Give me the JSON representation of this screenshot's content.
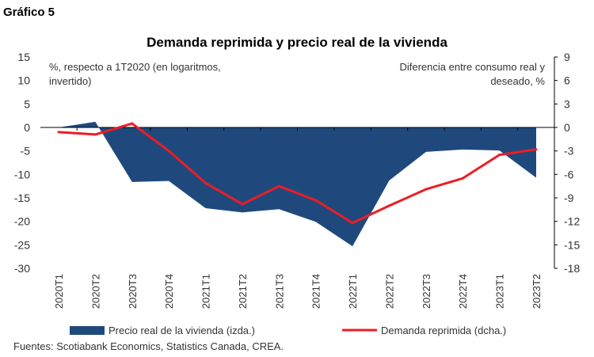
{
  "header": {
    "label": "Gráfico 5"
  },
  "chart_data": {
    "type": "area+line",
    "title": "Demanda reprimida y precio real de la vivienda",
    "left_axis_label": "%, respecto a 1T2020 (en logaritmos, invertido)",
    "left_axis_label_lines": [
      "%, respecto a 1T2020 (en logaritmos,",
      "invertido)"
    ],
    "right_axis_label_lines": [
      "Diferencia entre consumo real y",
      "deseado, %"
    ],
    "ylim_left": [
      -30,
      15
    ],
    "yticks_left": [
      15,
      10,
      5,
      0,
      -5,
      -10,
      -15,
      -20,
      -25,
      -30
    ],
    "ylim_right": [
      -18,
      9
    ],
    "yticks_right": [
      9,
      6,
      3,
      0,
      -3,
      -6,
      -9,
      -12,
      -15,
      -18
    ],
    "categories": [
      "2020T1",
      "2020T2",
      "2020T3",
      "2020T4",
      "2021T1",
      "2021T2",
      "2021T3",
      "2021T4",
      "2022T1",
      "2022T2",
      "2022T3",
      "2022T4",
      "2023T1",
      "2023T2"
    ],
    "series": [
      {
        "name": "Precio real de la vivienda (izda.)",
        "type": "area",
        "axis": "left",
        "color": "#1f497d",
        "values": [
          0,
          1.2,
          -11.6,
          -11.4,
          -17.2,
          -18.1,
          -17.4,
          -20.1,
          -25.3,
          -11.3,
          -5.2,
          -4.7,
          -4.9,
          -10.7
        ]
      },
      {
        "name": "Demanda reprimida (dcha.)",
        "type": "line",
        "axis": "right",
        "color": "#ee1c25",
        "values": [
          -0.6,
          -0.9,
          0.5,
          -3.0,
          -7.1,
          -9.8,
          -7.5,
          -9.3,
          -12.2,
          -10.0,
          -7.9,
          -6.5,
          -3.5,
          -2.8
        ]
      }
    ],
    "grid": false,
    "legend_placement": "bottom"
  },
  "footer": {
    "source": "Fuentes: Scotiabank Economics, Statistics Canada, CREA."
  }
}
